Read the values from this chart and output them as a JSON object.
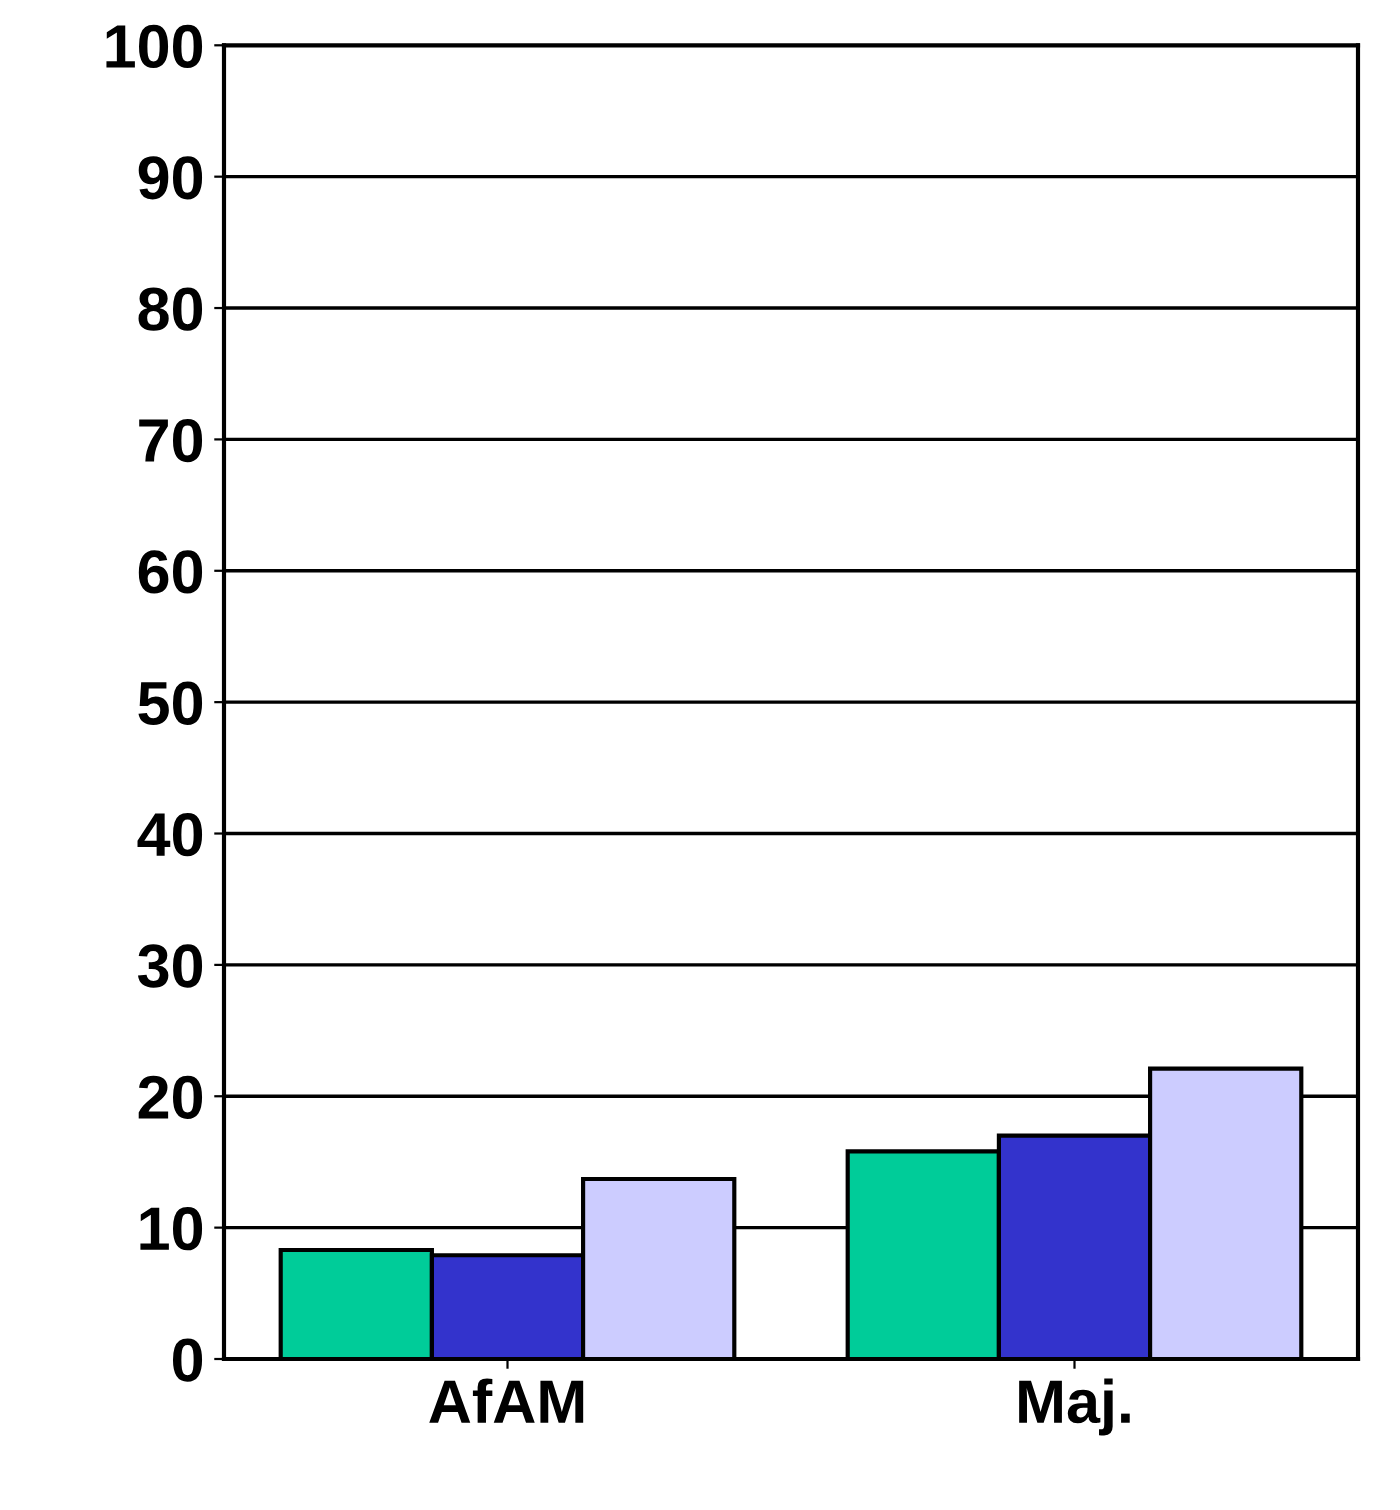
{
  "chart_data": {
    "type": "bar",
    "categories": [
      "AfAM",
      "Maj."
    ],
    "series": [
      {
        "color": "#00cc99",
        "values": [
          8.3,
          15.8
        ]
      },
      {
        "color": "#3333cc",
        "values": [
          7.9,
          17.0
        ]
      },
      {
        "color": "#ccccff",
        "values": [
          13.7,
          22.1
        ]
      }
    ],
    "ylim": [
      0,
      100
    ],
    "yticks": [
      0,
      10,
      20,
      30,
      40,
      50,
      60,
      70,
      80,
      90,
      100
    ],
    "grid": "y"
  }
}
